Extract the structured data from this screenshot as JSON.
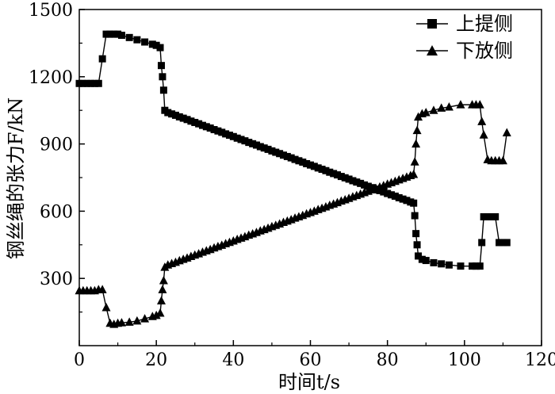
{
  "chart_data": {
    "type": "line",
    "xlabel": "时间t/s",
    "ylabel": "钢丝绳的张力F/kN",
    "xlim": [
      0,
      120
    ],
    "ylim": [
      0,
      1500
    ],
    "xticks": [
      0,
      20,
      40,
      60,
      80,
      100,
      120
    ],
    "yticks": [
      300,
      600,
      900,
      1200,
      1500
    ],
    "grid": false,
    "legend_position": "top-right",
    "series": [
      {
        "name": "上提侧",
        "marker": "square",
        "color": "#000000",
        "x": [
          0,
          1,
          2,
          3,
          4,
          5,
          6,
          7,
          8,
          9,
          10,
          11,
          13,
          15,
          17,
          19,
          20,
          21,
          21.3,
          21.6,
          21.9,
          22.2,
          23,
          24,
          25,
          26,
          27,
          28,
          29,
          30,
          31,
          32,
          33,
          34,
          35,
          36,
          37,
          38,
          39,
          40,
          41,
          42,
          43,
          44,
          45,
          46,
          47,
          48,
          49,
          50,
          51,
          52,
          53,
          54,
          55,
          56,
          57,
          58,
          59,
          60,
          61,
          62,
          63,
          64,
          65,
          66,
          67,
          68,
          69,
          70,
          71,
          72,
          73,
          74,
          75,
          76,
          77,
          78,
          79,
          80,
          81,
          82,
          83,
          84,
          85,
          86,
          86.8,
          87.1,
          87.4,
          87.7,
          88,
          89,
          90,
          92,
          94,
          96,
          99,
          102,
          103,
          104,
          104.5,
          105,
          106,
          107,
          108,
          109,
          110,
          111
        ],
        "y": [
          1170,
          1170,
          1170,
          1170,
          1170,
          1170,
          1280,
          1390,
          1390,
          1390,
          1390,
          1385,
          1375,
          1365,
          1355,
          1345,
          1340,
          1330,
          1250,
          1200,
          1140,
          1050,
          1040,
          1034,
          1028,
          1021,
          1015,
          1009,
          1002,
          996,
          990,
          983,
          977,
          971,
          964,
          958,
          952,
          945,
          939,
          933,
          926,
          920,
          914,
          907,
          901,
          895,
          888,
          882,
          876,
          869,
          863,
          857,
          850,
          844,
          838,
          831,
          825,
          819,
          812,
          806,
          800,
          793,
          787,
          781,
          774,
          768,
          762,
          755,
          749,
          743,
          736,
          730,
          724,
          717,
          711,
          705,
          698,
          692,
          686,
          679,
          673,
          667,
          660,
          654,
          648,
          641,
          636,
          580,
          500,
          450,
          400,
          385,
          380,
          370,
          365,
          360,
          355,
          355,
          355,
          355,
          460,
          575,
          575,
          575,
          575,
          460,
          460,
          460
        ]
      },
      {
        "name": "下放侧",
        "marker": "triangle",
        "color": "#000000",
        "x": [
          0,
          1,
          2,
          3,
          4,
          5,
          6,
          7,
          8,
          9,
          10,
          11,
          13,
          15,
          17,
          19,
          20,
          21,
          21.3,
          21.6,
          21.9,
          22.2,
          23,
          24,
          25,
          26,
          27,
          28,
          29,
          30,
          31,
          32,
          33,
          34,
          35,
          36,
          37,
          38,
          39,
          40,
          41,
          42,
          43,
          44,
          45,
          46,
          47,
          48,
          49,
          50,
          51,
          52,
          53,
          54,
          55,
          56,
          57,
          58,
          59,
          60,
          61,
          62,
          63,
          64,
          65,
          66,
          67,
          68,
          69,
          70,
          71,
          72,
          73,
          74,
          75,
          76,
          77,
          78,
          79,
          80,
          81,
          82,
          83,
          84,
          85,
          86,
          86.8,
          87.1,
          87.4,
          87.7,
          88,
          89,
          90,
          92,
          94,
          96,
          99,
          102,
          103,
          104,
          104.5,
          105,
          106,
          107,
          108,
          109,
          110,
          111
        ],
        "y": [
          245,
          245,
          245,
          245,
          245,
          250,
          250,
          170,
          100,
          95,
          100,
          102,
          105,
          110,
          120,
          130,
          135,
          145,
          200,
          250,
          290,
          350,
          360,
          366,
          372,
          379,
          385,
          391,
          398,
          404,
          410,
          417,
          423,
          429,
          436,
          442,
          448,
          455,
          461,
          467,
          474,
          480,
          486,
          493,
          499,
          505,
          512,
          518,
          524,
          531,
          537,
          543,
          550,
          556,
          562,
          569,
          575,
          581,
          588,
          594,
          600,
          607,
          613,
          619,
          626,
          632,
          638,
          645,
          651,
          657,
          664,
          670,
          676,
          683,
          689,
          695,
          702,
          708,
          714,
          721,
          727,
          733,
          740,
          746,
          752,
          759,
          764,
          820,
          900,
          960,
          1020,
          1035,
          1040,
          1050,
          1060,
          1065,
          1075,
          1075,
          1075,
          1075,
          1000,
          940,
          830,
          825,
          825,
          825,
          825,
          950
        ]
      }
    ]
  }
}
